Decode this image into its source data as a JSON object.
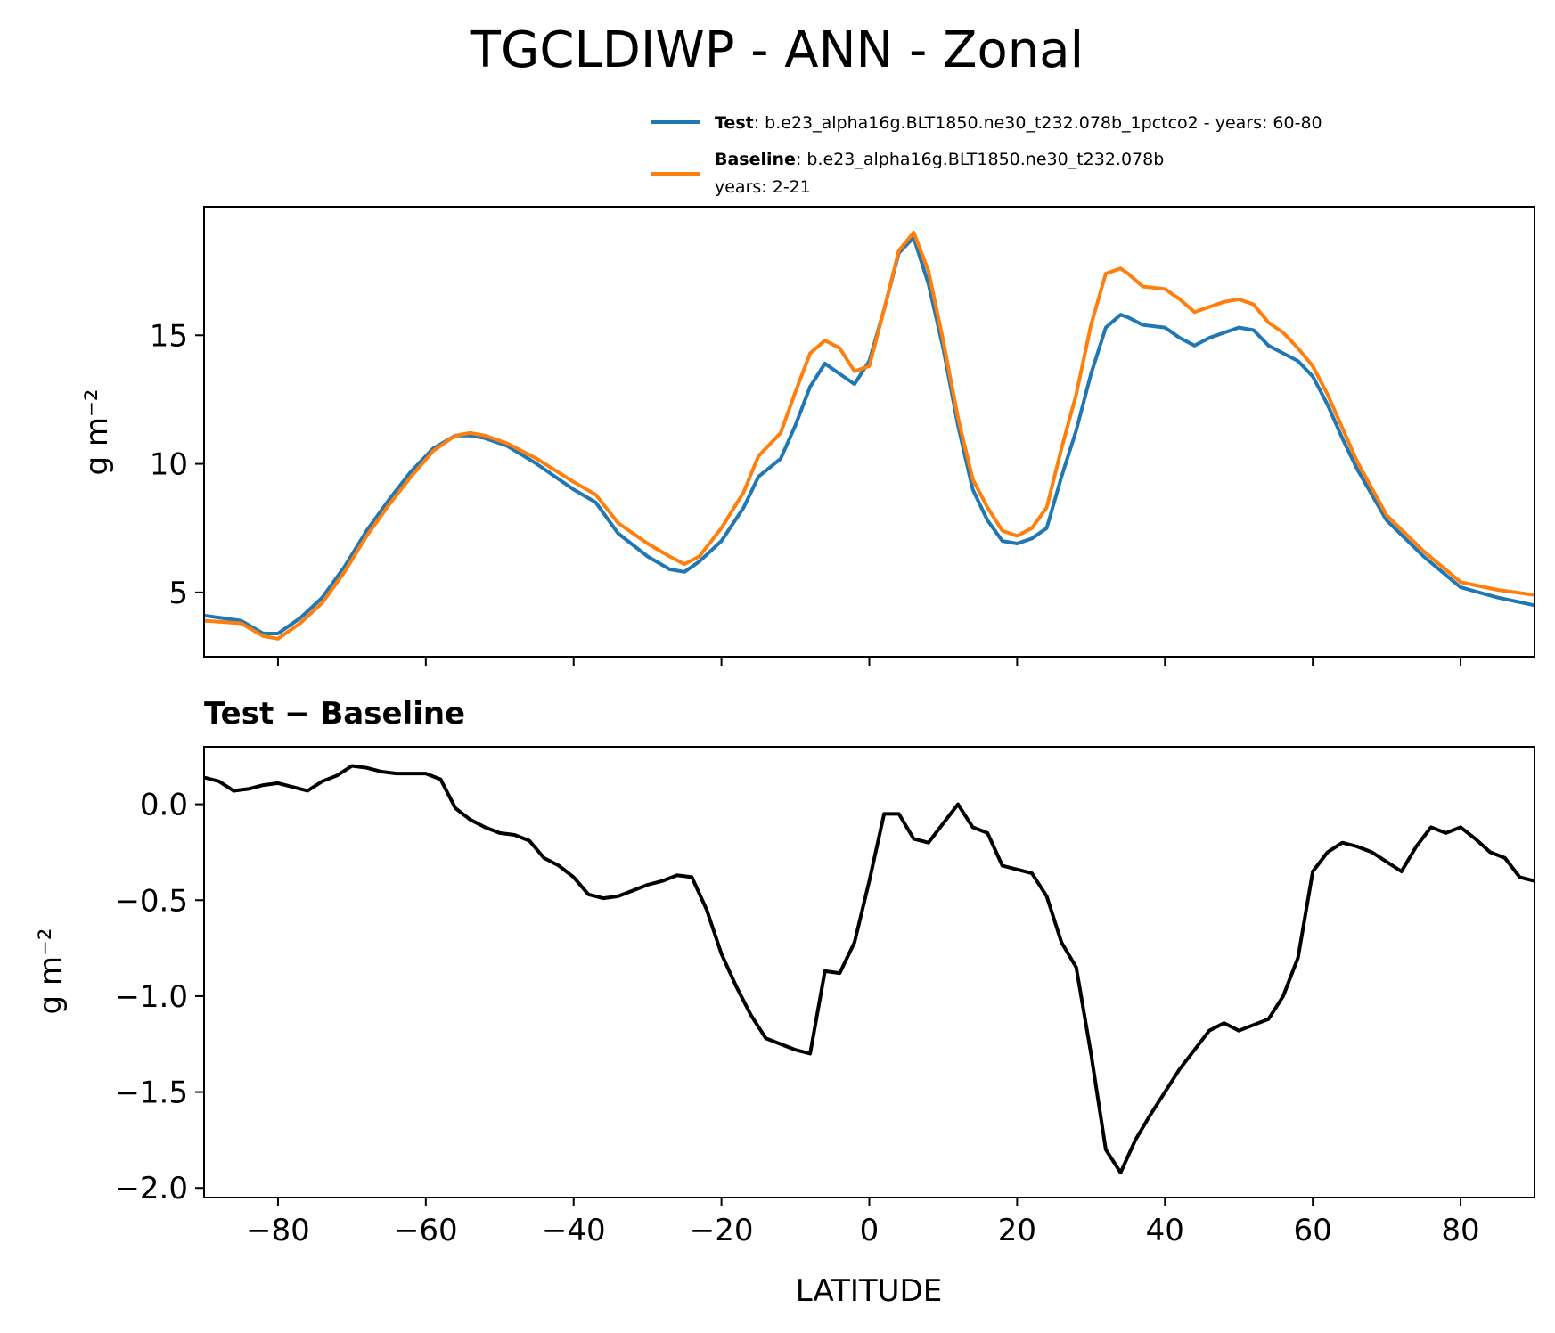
{
  "figure_title": "TGCLDIWP - ANN - Zonal",
  "legend": {
    "test_name": "Test",
    "test_desc": ": b.e23_alpha16g.BLT1850.ne30_t232.078b_1pctco2 - years: 60-80",
    "baseline_name": "Baseline",
    "baseline_desc": ": b.e23_alpha16g.BLT1850.ne30_t232.078b",
    "baseline_years": "years: 2-21"
  },
  "colors": {
    "test": "#1f77b4",
    "baseline": "#ff7f0e",
    "diff": "#000000"
  },
  "chart_data": [
    {
      "type": "line",
      "ylabel": "g m⁻²",
      "xlim": [
        -90,
        90
      ],
      "ylim": [
        2.5,
        20
      ],
      "yticks": [
        5,
        10,
        15
      ],
      "ytick_labels": [
        "5",
        "10",
        "15"
      ],
      "series": [
        {
          "name": "Test",
          "x": [
            -90,
            -85,
            -82,
            -80,
            -77,
            -74,
            -71,
            -68,
            -65,
            -62,
            -59,
            -56,
            -54,
            -52,
            -49,
            -45,
            -40,
            -37,
            -34,
            -30,
            -27,
            -25,
            -23,
            -20,
            -17,
            -15,
            -12,
            -10,
            -8,
            -6,
            -4,
            -2,
            0,
            2,
            4,
            6,
            8,
            10,
            12,
            14,
            16,
            18,
            20,
            22,
            24,
            26,
            28,
            30,
            32,
            34,
            35,
            37,
            40,
            42,
            44,
            46,
            48,
            50,
            52,
            54,
            56,
            58,
            60,
            62,
            64,
            66,
            70,
            75,
            80,
            85,
            90
          ],
          "values": [
            4.1,
            3.9,
            3.4,
            3.4,
            4.0,
            4.8,
            6.0,
            7.4,
            8.6,
            9.7,
            10.6,
            11.1,
            11.1,
            11.0,
            10.7,
            10.0,
            9.0,
            8.5,
            7.3,
            6.4,
            5.9,
            5.8,
            6.2,
            7.0,
            8.3,
            9.5,
            10.2,
            11.5,
            13.0,
            13.9,
            13.5,
            13.1,
            14.0,
            16.0,
            18.2,
            18.8,
            17.0,
            14.5,
            11.5,
            9.0,
            7.8,
            7.0,
            6.9,
            7.1,
            7.5,
            9.5,
            11.3,
            13.5,
            15.3,
            15.8,
            15.7,
            15.4,
            15.3,
            14.9,
            14.6,
            14.9,
            15.1,
            15.3,
            15.2,
            14.6,
            14.3,
            14.0,
            13.4,
            12.3,
            11.0,
            9.8,
            7.8,
            6.4,
            5.2,
            4.8,
            4.5
          ]
        },
        {
          "name": "Baseline",
          "x": [
            -90,
            -85,
            -82,
            -80,
            -77,
            -74,
            -71,
            -68,
            -65,
            -62,
            -59,
            -56,
            -54,
            -52,
            -49,
            -45,
            -40,
            -37,
            -34,
            -30,
            -27,
            -25,
            -23,
            -20,
            -17,
            -15,
            -12,
            -10,
            -8,
            -6,
            -4,
            -2,
            0,
            2,
            4,
            6,
            8,
            10,
            12,
            14,
            16,
            18,
            20,
            22,
            24,
            26,
            28,
            30,
            32,
            34,
            35,
            37,
            40,
            42,
            44,
            46,
            48,
            50,
            52,
            54,
            56,
            58,
            60,
            62,
            64,
            66,
            70,
            75,
            80,
            85,
            90
          ],
          "values": [
            3.9,
            3.8,
            3.3,
            3.2,
            3.8,
            4.6,
            5.8,
            7.2,
            8.4,
            9.5,
            10.5,
            11.1,
            11.2,
            11.1,
            10.8,
            10.2,
            9.3,
            8.8,
            7.7,
            6.9,
            6.4,
            6.1,
            6.4,
            7.5,
            8.9,
            10.3,
            11.2,
            12.8,
            14.3,
            14.8,
            14.5,
            13.6,
            13.8,
            16.0,
            18.3,
            19.0,
            17.5,
            14.8,
            11.8,
            9.4,
            8.3,
            7.4,
            7.2,
            7.5,
            8.3,
            10.6,
            12.7,
            15.4,
            17.4,
            17.6,
            17.4,
            16.9,
            16.8,
            16.4,
            15.9,
            16.1,
            16.3,
            16.4,
            16.2,
            15.5,
            15.1,
            14.5,
            13.8,
            12.7,
            11.4,
            10.1,
            8.0,
            6.6,
            5.4,
            5.1,
            4.9
          ]
        }
      ]
    },
    {
      "type": "line",
      "title": "Test − Baseline",
      "xlabel": "LATITUDE",
      "ylabel": "g m⁻²",
      "xlim": [
        -90,
        90
      ],
      "ylim": [
        -2.05,
        0.3
      ],
      "xticks": [
        -80,
        -60,
        -40,
        -20,
        0,
        20,
        40,
        60,
        80
      ],
      "xtick_labels": [
        "−80",
        "−60",
        "−40",
        "−20",
        "0",
        "20",
        "40",
        "60",
        "80"
      ],
      "yticks": [
        0.0,
        -0.5,
        -1.0,
        -1.5,
        -2.0
      ],
      "ytick_labels": [
        "0.0",
        "−0.5",
        "−1.0",
        "−1.5",
        "−2.0"
      ],
      "series": [
        {
          "name": "Test − Baseline",
          "x": [
            -90,
            -88,
            -86,
            -84,
            -82,
            -80,
            -78,
            -76,
            -74,
            -72,
            -70,
            -68,
            -66,
            -64,
            -62,
            -60,
            -58,
            -56,
            -54,
            -52,
            -50,
            -48,
            -46,
            -44,
            -42,
            -40,
            -38,
            -36,
            -34,
            -32,
            -30,
            -28,
            -26,
            -24,
            -22,
            -20,
            -18,
            -16,
            -14,
            -12,
            -10,
            -8,
            -6,
            -4,
            -2,
            0,
            2,
            4,
            6,
            8,
            10,
            12,
            14,
            16,
            18,
            20,
            22,
            24,
            26,
            28,
            30,
            32,
            34,
            36,
            38,
            40,
            42,
            44,
            46,
            48,
            50,
            52,
            54,
            56,
            58,
            60,
            62,
            64,
            66,
            68,
            70,
            72,
            74,
            76,
            78,
            80,
            82,
            84,
            86,
            88,
            90
          ],
          "values": [
            0.14,
            0.12,
            0.07,
            0.08,
            0.1,
            0.11,
            0.09,
            0.07,
            0.12,
            0.15,
            0.2,
            0.19,
            0.17,
            0.16,
            0.16,
            0.16,
            0.13,
            -0.02,
            -0.08,
            -0.12,
            -0.15,
            -0.16,
            -0.19,
            -0.28,
            -0.32,
            -0.38,
            -0.47,
            -0.49,
            -0.48,
            -0.45,
            -0.42,
            -0.4,
            -0.37,
            -0.38,
            -0.55,
            -0.78,
            -0.95,
            -1.1,
            -1.22,
            -1.25,
            -1.28,
            -1.3,
            -0.87,
            -0.88,
            -0.72,
            -0.4,
            -0.05,
            -0.05,
            -0.18,
            -0.2,
            -0.1,
            0.0,
            -0.12,
            -0.15,
            -0.32,
            -0.34,
            -0.36,
            -0.48,
            -0.72,
            -0.85,
            -1.3,
            -1.8,
            -1.92,
            -1.75,
            -1.62,
            -1.5,
            -1.38,
            -1.28,
            -1.18,
            -1.14,
            -1.18,
            -1.15,
            -1.12,
            -1.0,
            -0.8,
            -0.35,
            -0.25,
            -0.2,
            -0.22,
            -0.25,
            -0.3,
            -0.35,
            -0.22,
            -0.12,
            -0.15,
            -0.12,
            -0.18,
            -0.25,
            -0.28,
            -0.38,
            -0.4
          ]
        }
      ]
    }
  ]
}
